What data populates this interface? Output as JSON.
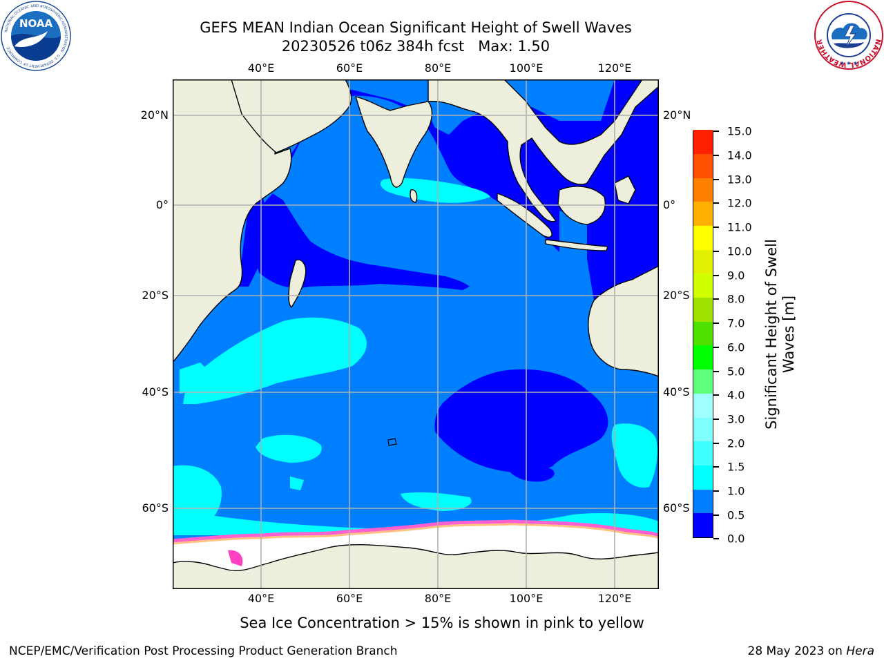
{
  "title": {
    "line1": "GEFS MEAN Indian Ocean Significant Height of Swell Waves",
    "line2": "20230526 t06z 384h fcst   Max: 1.50"
  },
  "map": {
    "lon_labels": [
      "40°E",
      "60°E",
      "80°E",
      "100°E",
      "120°E"
    ],
    "lat_labels": [
      "20°N",
      "0°",
      "20°S",
      "40°S",
      "60°S"
    ]
  },
  "colorbar": {
    "title_line1": "Significant Height of Swell",
    "title_line2": "Waves [m]",
    "ticks": [
      "0.0",
      "0.5",
      "1.0",
      "1.5",
      "2.0",
      "3.0",
      "4.0",
      "5.0",
      "6.0",
      "7.0",
      "8.0",
      "9.0",
      "10.0",
      "11.0",
      "12.0",
      "13.0",
      "14.0",
      "15.0"
    ],
    "colors": [
      "#0000ff",
      "#0080ff",
      "#00ffff",
      "#40ffff",
      "#80ffff",
      "#a0ffff",
      "#60ff80",
      "#00ff00",
      "#50e000",
      "#a0e000",
      "#d0ff00",
      "#e0f000",
      "#ffff00",
      "#ffb000",
      "#ff8000",
      "#ff5000",
      "#ff2000",
      "#ff0000"
    ]
  },
  "caption": "Sea Ice Concentration > 15% is shown in pink to yellow",
  "footer": {
    "left": "NCEP/EMC/Verification Post Processing Product Generation Branch",
    "right_prefix": "28 May 2023 on ",
    "right_host": "Hera"
  },
  "logos": {
    "noaa_text": "NOAA",
    "noaa_ring": "NATIONAL OCEANIC AND ATMOSPHERIC ADMINISTRATION · U.S. DEPARTMENT OF COMMERCE",
    "nws_ring": "NATIONAL WEATHER SERVICE"
  },
  "palette": {
    "land": "#eeeedd",
    "sea_ice": "#ffffff",
    "grid": "#b0b0b0",
    "swell_low": "#0000ff",
    "swell_mid": "#0080ff",
    "swell_high": "#00ffff"
  }
}
